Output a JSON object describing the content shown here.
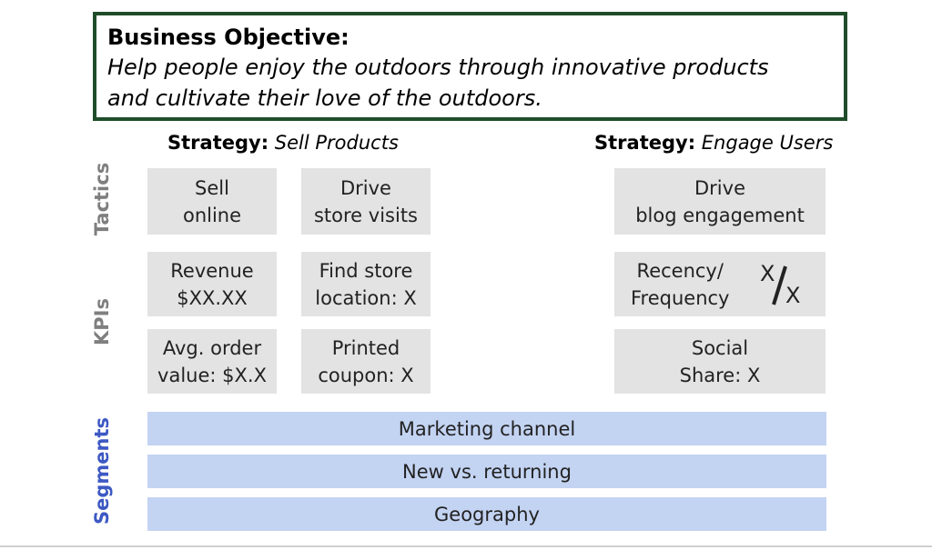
{
  "objective": {
    "heading": "Business Objective:",
    "line1": "Help people enjoy the outdoors through innovative products",
    "line2": "and cultivate their love of the outdoors."
  },
  "strategies": [
    {
      "prefix": "Strategy:",
      "name": "Sell Products"
    },
    {
      "prefix": "Strategy:",
      "name": "Engage Users"
    }
  ],
  "row_labels": {
    "tactics": "Tactics",
    "kpis": "KPIs",
    "segments": "Segments"
  },
  "tactics": {
    "sell_online": "Sell\nonline",
    "drive_store_visits": "Drive\nstore visits",
    "drive_blog": "Drive\nblog engagement"
  },
  "kpis": {
    "revenue": "Revenue\n$XX.XX",
    "find_store": "Find store\nlocation: X",
    "recency": "Recency/\nFrequency",
    "recency_fraction": {
      "numerator": "X",
      "denominator": "X"
    },
    "avg_order": "Avg. order\nvalue: $X.X",
    "coupon": "Printed\ncoupon: X",
    "social": "Social\nShare: X"
  },
  "segments": [
    "Marketing channel",
    "New vs. returning",
    "Geography"
  ],
  "colors": {
    "objective_border": "#1f4d2a",
    "box_gray": "#e3e3e3",
    "segment_blue": "#c3d3f2",
    "segment_label": "#3d59c3",
    "row_label_gray": "#7f7f7f"
  }
}
